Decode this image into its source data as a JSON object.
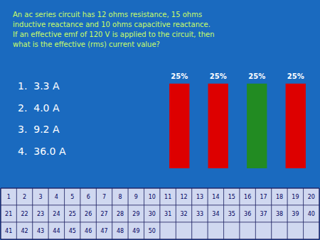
{
  "chart_data": {
    "type": "bar",
    "title": "An ac series circuit has 12 ohms resistance, 15 ohms\ninductive reactance and 10 ohms capacitive reactance.\nIf an effective emf of 120 V is applied to the circuit, then\nwhat is the effective (rms) current value?",
    "annotations": [
      [
        "1.  3.3 A",
        "2.  4.0 A",
        "3.  9.2 A",
        "4.  36.0 A"
      ],
      [
        "1",
        "2",
        "3",
        "4",
        "5",
        "6",
        "7",
        "8",
        "9",
        "10",
        "11",
        "12",
        "13",
        "14",
        "15",
        "16",
        "17",
        "18",
        "19",
        "20"
      ],
      [
        "21",
        "22",
        "23",
        "24",
        "25",
        "26",
        "27",
        "28",
        "29",
        "30",
        "31",
        "32",
        "33",
        "34",
        "35",
        "36",
        "37",
        "38",
        "39",
        "40"
      ],
      [
        "41",
        "42",
        "43",
        "44",
        "45",
        "46",
        "47",
        "48",
        "49",
        "50"
      ]
    ],
    "categories": [
      null,
      null,
      null,
      null
    ],
    "values": [
      25,
      25,
      25,
      25
    ],
    "value_labels": [
      "25%",
      "25%",
      "25%",
      "25%"
    ],
    "colors": [
      "#dd0000",
      "#dd0000",
      "#228B22",
      "#dd0000"
    ],
    "ylim": [
      -4,
      34
    ],
    "data_labels": true,
    "tick_labels": false,
    "grid": false
  }
}
